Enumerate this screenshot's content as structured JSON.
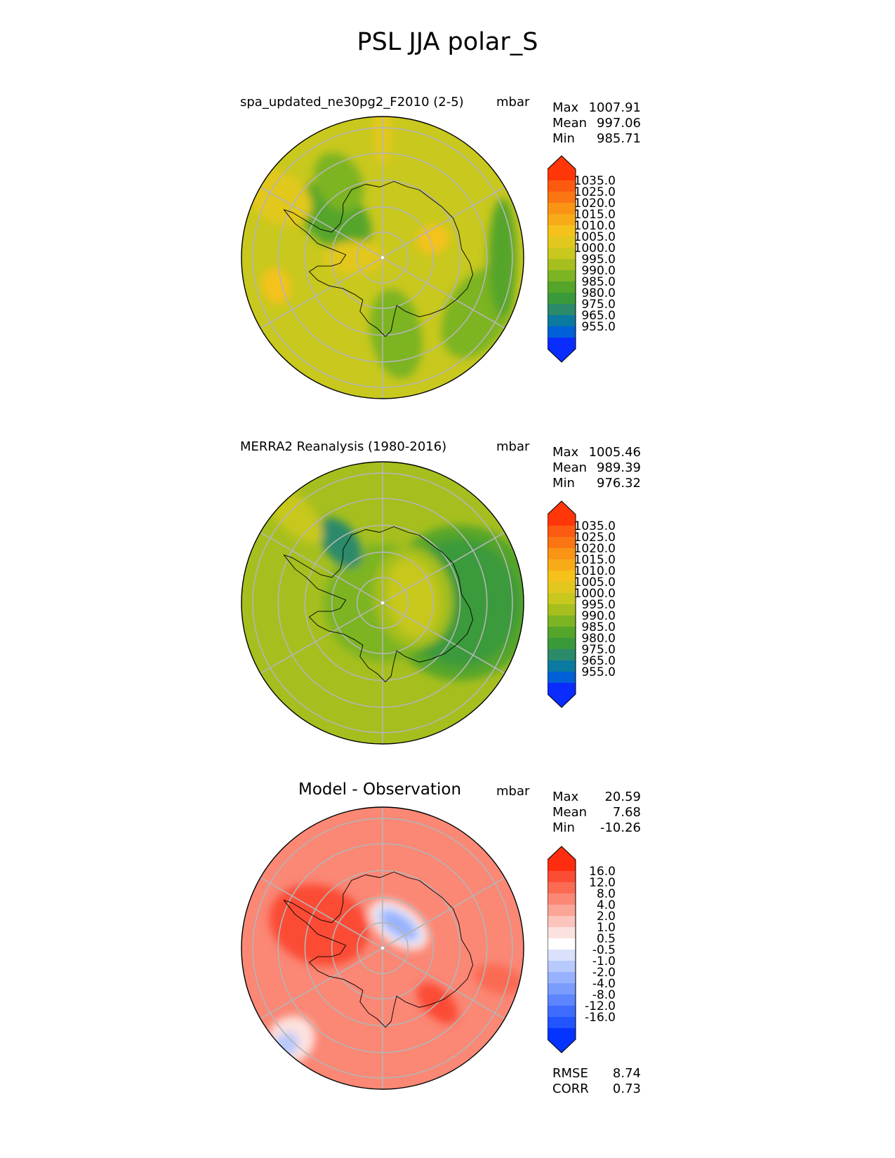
{
  "figure_title": "PSL JJA polar_S",
  "colors": {
    "psl_levels": [
      "#0a2cff",
      "#0060d8",
      "#0b7aa0",
      "#2b8a6a",
      "#3a9a3a",
      "#55a52a",
      "#7cb424",
      "#a6bf1e",
      "#c8c81e",
      "#e2c81e",
      "#f5c21c",
      "#f8ab18",
      "#f99414",
      "#fb7512",
      "#fc5a10",
      "#ff3608"
    ],
    "diff_levels": [
      "#0533ff",
      "#2254ff",
      "#3f6cff",
      "#5c85ff",
      "#7a9cff",
      "#98b2ff",
      "#b8c9fb",
      "#d9e1fb",
      "#ffffff",
      "#fce2df",
      "#fbc4bd",
      "#fba597",
      "#fb8775",
      "#fb6a53",
      "#fb4c34",
      "#ff2d10"
    ],
    "grid": "#b5b5b5",
    "coast": "#000000"
  },
  "chart_data": [
    {
      "type": "polar_contour_map",
      "title": "spa_updated_ne30pg2_F2010 (2-5)",
      "units": "mbar",
      "stats": {
        "max_label": "Max",
        "max": "1007.91",
        "mean_label": "Mean",
        "mean": "997.06",
        "min_label": "Min",
        "min": "985.71"
      },
      "colorbar_ticks": [
        "1035.0",
        "1025.0",
        "1020.0",
        "1015.0",
        "1010.0",
        "1005.0",
        "1000.0",
        "995.0",
        "990.0",
        "985.0",
        "980.0",
        "975.0",
        "965.0",
        "955.0"
      ],
      "palette": "psl",
      "background_level": 8,
      "regions": [
        {
          "theta": -30,
          "r": 0.78,
          "rx": 0.22,
          "ry": 0.35,
          "level": 6
        },
        {
          "theta": -80,
          "r": 0.55,
          "rx": 0.32,
          "ry": 0.18,
          "level": 6
        },
        {
          "theta": 0,
          "r": 0.85,
          "rx": 0.1,
          "ry": 0.42,
          "level": 5
        },
        {
          "theta": 140,
          "r": 0.45,
          "rx": 0.3,
          "ry": 0.2,
          "level": 5
        },
        {
          "theta": 120,
          "r": 0.62,
          "rx": 0.22,
          "ry": 0.16,
          "level": 6
        },
        {
          "theta": 150,
          "r": 0.85,
          "rx": 0.25,
          "ry": 0.18,
          "level": 9
        },
        {
          "theta": 20,
          "r": 0.38,
          "rx": 0.12,
          "ry": 0.1,
          "level": 10
        },
        {
          "theta": 90,
          "r": 0.92,
          "rx": 0.28,
          "ry": 0.07,
          "level": 9
        },
        {
          "theta": 195,
          "r": 0.78,
          "rx": 0.1,
          "ry": 0.13,
          "level": 10
        },
        {
          "theta": 180,
          "r": 0.2,
          "rx": 0.22,
          "ry": 0.12,
          "level": 9
        }
      ]
    },
    {
      "type": "polar_contour_map",
      "title": "MERRA2 Reanalysis (1980-2016)",
      "units": "mbar",
      "stats": {
        "max_label": "Max",
        "max": "1005.46",
        "mean_label": "Mean",
        "mean": "989.39",
        "min_label": "Min",
        "min": "976.32"
      },
      "colorbar_ticks": [
        "1035.0",
        "1025.0",
        "1020.0",
        "1015.0",
        "1010.0",
        "1005.0",
        "1000.0",
        "995.0",
        "990.0",
        "985.0",
        "980.0",
        "975.0",
        "965.0",
        "955.0"
      ],
      "palette": "psl",
      "background_level": 7,
      "regions": [
        {
          "theta": 0,
          "r": 0.55,
          "rx": 0.55,
          "ry": 0.55,
          "level": 5
        },
        {
          "theta": 0,
          "r": 0.55,
          "rx": 0.42,
          "ry": 0.45,
          "level": 4
        },
        {
          "theta": 0,
          "r": 0.0,
          "rx": 0.42,
          "ry": 0.42,
          "level": 6
        },
        {
          "theta": 10,
          "r": 0.22,
          "rx": 0.28,
          "ry": 0.36,
          "level": 7
        },
        {
          "theta": 10,
          "r": 0.22,
          "rx": 0.18,
          "ry": 0.28,
          "level": 8
        },
        {
          "theta": 125,
          "r": 0.52,
          "rx": 0.2,
          "ry": 0.12,
          "level": 3
        },
        {
          "theta": 135,
          "r": 0.9,
          "rx": 0.28,
          "ry": 0.12,
          "level": 8
        }
      ]
    },
    {
      "type": "polar_contour_map",
      "title": "Model - Observation",
      "units": "mbar",
      "stats": {
        "max_label": "Max",
        "max": "20.59",
        "mean_label": "Mean",
        "mean": "7.68",
        "min_label": "Min",
        "min": "-10.26"
      },
      "colorbar_ticks": [
        "16.0",
        "12.0",
        "8.0",
        "4.0",
        "2.0",
        "1.0",
        "0.5",
        "-0.5",
        "-1.0",
        "-2.0",
        "-4.0",
        "-8.0",
        "-12.0",
        "-16.0"
      ],
      "palette": "diff",
      "background_level": 12,
      "regions": [
        {
          "theta": 160,
          "r": 0.48,
          "rx": 0.36,
          "ry": 0.28,
          "level": 14
        },
        {
          "theta": -45,
          "r": 0.55,
          "rx": 0.18,
          "ry": 0.1,
          "level": 14
        },
        {
          "theta": -15,
          "r": 0.85,
          "rx": 0.18,
          "ry": 0.1,
          "level": 13
        },
        {
          "theta": 55,
          "r": 0.2,
          "rx": 0.14,
          "ry": 0.24,
          "level": 9
        },
        {
          "theta": 55,
          "r": 0.2,
          "rx": 0.1,
          "ry": 0.2,
          "level": 7
        },
        {
          "theta": 55,
          "r": 0.2,
          "rx": 0.07,
          "ry": 0.15,
          "level": 5
        },
        {
          "theta": 225,
          "r": 0.92,
          "rx": 0.18,
          "ry": 0.16,
          "level": 9
        },
        {
          "theta": 225,
          "r": 0.97,
          "rx": 0.1,
          "ry": 0.08,
          "level": 6
        }
      ],
      "rmse_label": "RMSE",
      "rmse": "8.74",
      "corr_label": "CORR",
      "corr": "0.73"
    }
  ]
}
